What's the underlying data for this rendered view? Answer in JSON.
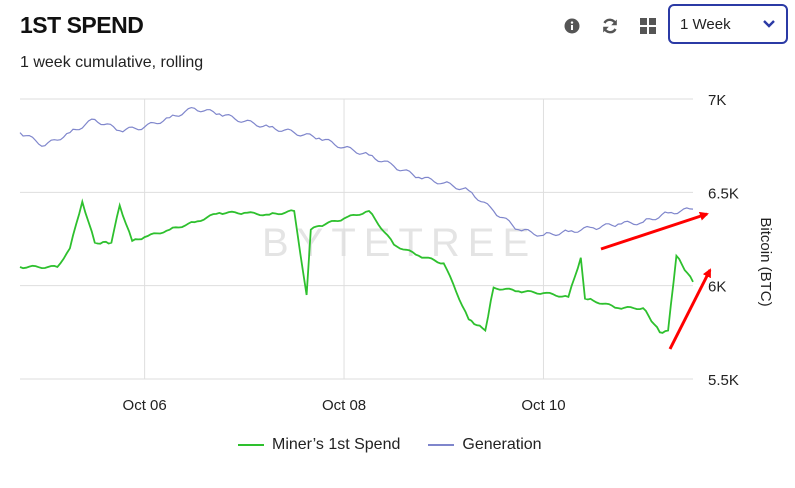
{
  "header": {
    "title": "1ST SPEND",
    "subtitle": "1 week cumulative, rolling"
  },
  "toolbar": {
    "icons": [
      "info-icon",
      "refresh-icon",
      "grid-icon"
    ],
    "period_select": "1 Week"
  },
  "watermark": "BYTETREE",
  "colors": {
    "miners_1st_spend": "#2ec02e",
    "generation": "#7f86cc",
    "select_border": "#2b3aa5",
    "annotation_arrow": "#ff0000"
  },
  "chart_data": {
    "type": "line",
    "x_tick_labels": [
      "Oct 06",
      "Oct 08",
      "Oct 10"
    ],
    "y_tick_labels": [
      "7K",
      "6.5K",
      "6K",
      "5.5K"
    ],
    "y_ticks": [
      7000,
      6500,
      6000,
      5500
    ],
    "ylabel": "Bitcoin (BTC)",
    "ylim": [
      5500,
      7000
    ],
    "xlim": [
      "2025-10-04T18:00",
      "2025-10-11T12:00"
    ],
    "grid": true,
    "y_axis_side": "right",
    "legend_position": "bottom",
    "series": [
      {
        "name": "Miner’s 1st Spend",
        "color": "#2ec02e",
        "x": [
          "2025-10-04T18:00",
          "2025-10-05T03:00",
          "2025-10-05T06:00",
          "2025-10-05T09:00",
          "2025-10-05T12:00",
          "2025-10-05T16:00",
          "2025-10-05T18:00",
          "2025-10-05T21:00",
          "2025-10-06T00:00",
          "2025-10-06T06:00",
          "2025-10-06T12:00",
          "2025-10-06T18:00",
          "2025-10-07T00:00",
          "2025-10-07T06:00",
          "2025-10-07T12:00",
          "2025-10-07T15:00",
          "2025-10-07T16:00",
          "2025-10-07T18:00",
          "2025-10-08T00:00",
          "2025-10-08T06:00",
          "2025-10-08T12:00",
          "2025-10-08T18:00",
          "2025-10-09T00:00",
          "2025-10-09T06:00",
          "2025-10-09T10:00",
          "2025-10-09T12:00",
          "2025-10-09T18:00",
          "2025-10-10T00:00",
          "2025-10-10T06:00",
          "2025-10-10T09:00",
          "2025-10-10T10:00",
          "2025-10-10T12:00",
          "2025-10-10T18:00",
          "2025-10-11T00:00",
          "2025-10-11T04:00",
          "2025-10-11T06:00",
          "2025-10-11T08:00",
          "2025-10-11T12:00"
        ],
        "values": [
          6100,
          6100,
          6200,
          6450,
          6230,
          6230,
          6430,
          6240,
          6260,
          6300,
          6340,
          6390,
          6390,
          6380,
          6400,
          5950,
          6300,
          6320,
          6360,
          6400,
          6220,
          6160,
          6120,
          5820,
          5760,
          5990,
          5970,
          5960,
          5940,
          6150,
          5930,
          5920,
          5880,
          5880,
          5750,
          5760,
          6160,
          6020
        ]
      },
      {
        "name": "Generation",
        "color": "#7f86cc",
        "x": [
          "2025-10-04T18:00",
          "2025-10-05T00:00",
          "2025-10-05T06:00",
          "2025-10-05T12:00",
          "2025-10-05T18:00",
          "2025-10-06T00:00",
          "2025-10-06T06:00",
          "2025-10-06T12:00",
          "2025-10-06T18:00",
          "2025-10-07T00:00",
          "2025-10-07T06:00",
          "2025-10-07T12:00",
          "2025-10-07T18:00",
          "2025-10-08T00:00",
          "2025-10-08T06:00",
          "2025-10-08T12:00",
          "2025-10-08T18:00",
          "2025-10-09T00:00",
          "2025-10-09T06:00",
          "2025-10-09T12:00",
          "2025-10-09T18:00",
          "2025-10-10T00:00",
          "2025-10-10T06:00",
          "2025-10-10T12:00",
          "2025-10-10T18:00",
          "2025-10-11T00:00",
          "2025-10-11T06:00",
          "2025-10-11T12:00"
        ],
        "values": [
          6820,
          6750,
          6820,
          6890,
          6830,
          6850,
          6900,
          6950,
          6920,
          6880,
          6850,
          6820,
          6790,
          6740,
          6700,
          6640,
          6580,
          6550,
          6510,
          6400,
          6300,
          6270,
          6290,
          6310,
          6330,
          6340,
          6390,
          6410
        ]
      }
    ],
    "annotations": [
      {
        "type": "arrow",
        "color": "#ff0000",
        "points_to": "Generation end"
      },
      {
        "type": "arrow",
        "color": "#ff0000",
        "points_to": "Miner’s 1st Spend end"
      }
    ]
  }
}
